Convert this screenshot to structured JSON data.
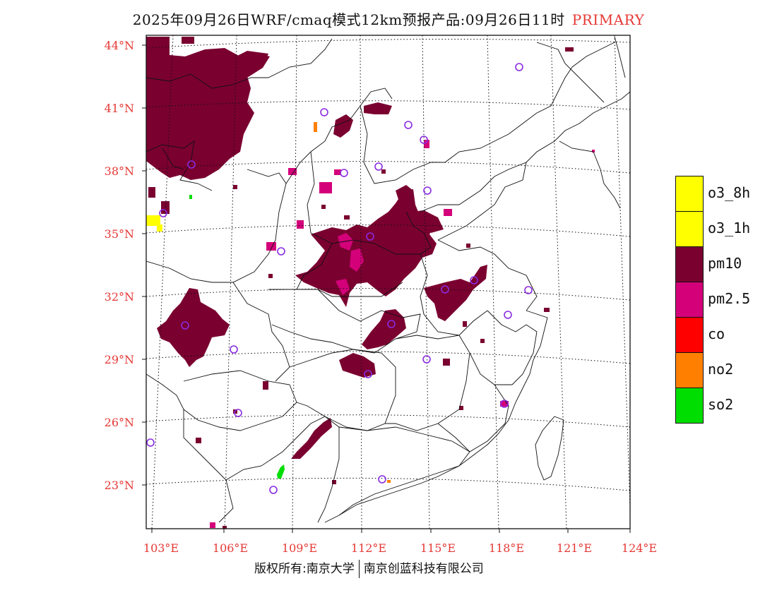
{
  "title": {
    "main": "2025年09月26日WRF/cmaq模式12km预报产品:09月26日11时",
    "variable": "PRIMARY"
  },
  "axes": {
    "lat_labels": [
      "44°N",
      "41°N",
      "38°N",
      "35°N",
      "32°N",
      "29°N",
      "26°N",
      "23°N"
    ],
    "lon_labels": [
      "103°E",
      "106°E",
      "109°E",
      "112°E",
      "115°E",
      "118°E",
      "121°E",
      "124°E"
    ]
  },
  "legend": [
    {
      "label": "o3_8h",
      "color": "#ffff00"
    },
    {
      "label": "o3_1h",
      "color": "#ffff00"
    },
    {
      "label": "pm10",
      "color": "#7a0030"
    },
    {
      "label": "pm2.5",
      "color": "#d4007a"
    },
    {
      "label": "co",
      "color": "#ff0000"
    },
    {
      "label": "no2",
      "color": "#ff7f00"
    },
    {
      "label": "so2",
      "color": "#00dd00"
    }
  ],
  "footer": {
    "left": "版权所有:南京大学",
    "right": "南京创蓝科技有限公司"
  },
  "colors": {
    "axis_label": "#e53935",
    "station_marker": "#8a2be2"
  }
}
